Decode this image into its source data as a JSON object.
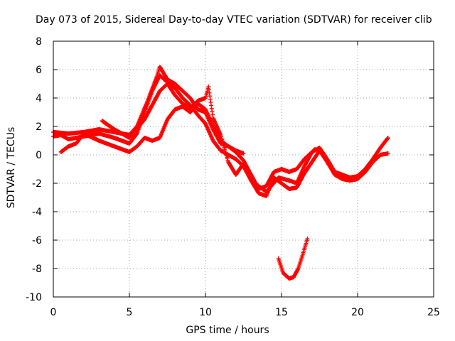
{
  "chart_data": {
    "type": "scatter",
    "title": "Day 073 of 2015, Sidereal Day-to-day VTEC variation (SDTVAR) for receiver clib",
    "xlabel": "GPS time / hours",
    "ylabel": "SDTVAR / TECUs",
    "xlim": [
      0,
      25
    ],
    "ylim": [
      -10,
      8
    ],
    "x_ticks": [
      "0",
      "5",
      "10",
      "15",
      "20",
      "25"
    ],
    "y_ticks": [
      "-10",
      "-8",
      "-6",
      "-4",
      "-2",
      "0",
      "2",
      "4",
      "6",
      "8"
    ],
    "grid": true,
    "marker_color": "#ff0000",
    "series": [
      {
        "values": [
          [
            0.0,
            1.6
          ],
          [
            1.0,
            1.5
          ],
          [
            2.0,
            1.6
          ],
          [
            3.0,
            1.8
          ],
          [
            4.0,
            1.6
          ],
          [
            5.0,
            1.4
          ],
          [
            5.5,
            2.0
          ],
          [
            6.2,
            3.8
          ],
          [
            6.8,
            5.5
          ],
          [
            7.0,
            6.2
          ],
          [
            7.5,
            5.3
          ],
          [
            8.0,
            5.0
          ],
          [
            8.5,
            4.5
          ],
          [
            9.0,
            4.0
          ],
          [
            9.5,
            3.2
          ],
          [
            10.0,
            3.0
          ],
          [
            10.5,
            1.8
          ],
          [
            11.0,
            0.8
          ],
          [
            11.5,
            0.6
          ],
          [
            12.0,
            0.2
          ],
          [
            12.5,
            -0.4
          ],
          [
            13.0,
            -1.4
          ],
          [
            13.5,
            -2.4
          ],
          [
            14.0,
            -2.2
          ],
          [
            14.5,
            -1.2
          ],
          [
            15.0,
            -1.0
          ],
          [
            15.5,
            -1.2
          ],
          [
            16.0,
            -1.0
          ],
          [
            16.5,
            -0.3
          ],
          [
            17.0,
            0.2
          ],
          [
            17.5,
            0.5
          ],
          [
            18.0,
            -0.3
          ],
          [
            18.5,
            -1.2
          ],
          [
            19.0,
            -1.4
          ],
          [
            19.5,
            -1.6
          ],
          [
            20.0,
            -1.5
          ],
          [
            20.5,
            -1.0
          ],
          [
            21.0,
            -0.3
          ],
          [
            21.5,
            0.5
          ],
          [
            22.0,
            1.2
          ]
        ]
      },
      {
        "values": [
          [
            0.0,
            1.3
          ],
          [
            0.5,
            1.4
          ],
          [
            1.0,
            1.1
          ],
          [
            2.0,
            1.3
          ],
          [
            3.0,
            1.5
          ],
          [
            4.0,
            1.2
          ],
          [
            4.5,
            1.0
          ],
          [
            5.0,
            0.8
          ],
          [
            5.5,
            1.5
          ],
          [
            6.0,
            3.0
          ],
          [
            6.5,
            4.5
          ],
          [
            7.0,
            5.6
          ],
          [
            7.5,
            5.1
          ],
          [
            8.0,
            4.7
          ],
          [
            8.5,
            4.0
          ],
          [
            9.0,
            3.5
          ],
          [
            9.5,
            2.8
          ],
          [
            10.0,
            2.2
          ],
          [
            10.5,
            1.0
          ],
          [
            11.0,
            0.3
          ],
          [
            11.5,
            0.0
          ],
          [
            12.0,
            -0.3
          ],
          [
            12.5,
            -0.8
          ],
          [
            13.0,
            -1.8
          ],
          [
            13.5,
            -2.7
          ],
          [
            14.0,
            -2.9
          ],
          [
            14.5,
            -1.6
          ],
          [
            15.0,
            -2.0
          ],
          [
            15.5,
            -2.4
          ],
          [
            16.0,
            -2.3
          ],
          [
            16.5,
            -1.3
          ],
          [
            17.0,
            -0.5
          ],
          [
            17.5,
            0.3
          ],
          [
            18.0,
            -0.5
          ],
          [
            18.5,
            -1.4
          ],
          [
            19.0,
            -1.7
          ],
          [
            19.5,
            -1.8
          ],
          [
            20.0,
            -1.7
          ],
          [
            20.5,
            -1.2
          ],
          [
            21.0,
            -0.5
          ],
          [
            21.5,
            0.0
          ],
          [
            22.0,
            0.1
          ]
        ]
      },
      {
        "values": [
          [
            0.5,
            0.2
          ],
          [
            1.0,
            0.6
          ],
          [
            1.5,
            0.8
          ],
          [
            2.0,
            1.5
          ],
          [
            3.0,
            1.0
          ],
          [
            3.5,
            0.8
          ],
          [
            4.0,
            0.6
          ],
          [
            4.5,
            0.4
          ],
          [
            5.0,
            0.2
          ],
          [
            5.5,
            0.6
          ],
          [
            6.0,
            1.2
          ],
          [
            6.5,
            1.0
          ],
          [
            7.0,
            1.2
          ],
          [
            7.5,
            2.5
          ],
          [
            8.0,
            3.2
          ],
          [
            8.5,
            3.4
          ],
          [
            9.0,
            3.0
          ],
          [
            9.5,
            3.6
          ],
          [
            10.0,
            3.2
          ],
          [
            10.5,
            2.0
          ],
          [
            11.0,
            1.0
          ],
          [
            11.5,
            0.6
          ],
          [
            12.0,
            0.3
          ],
          [
            12.5,
            0.1
          ]
        ]
      },
      {
        "values": [
          [
            3.2,
            2.4
          ],
          [
            4.0,
            1.8
          ],
          [
            5.0,
            1.2
          ],
          [
            6.0,
            2.5
          ],
          [
            7.0,
            4.5
          ],
          [
            7.5,
            5.0
          ],
          [
            8.0,
            4.2
          ],
          [
            8.5,
            3.6
          ],
          [
            9.0,
            3.3
          ],
          [
            9.5,
            3.8
          ],
          [
            10.0,
            4.0
          ],
          [
            10.2,
            4.8
          ],
          [
            10.5,
            2.6
          ],
          [
            11.0,
            1.4
          ],
          [
            11.5,
            -0.5
          ],
          [
            12.0,
            -1.4
          ],
          [
            12.5,
            -0.6
          ],
          [
            13.0,
            -1.8
          ],
          [
            14.0,
            -2.6
          ],
          [
            14.8,
            -1.6
          ],
          [
            15.5,
            -1.8
          ],
          [
            16.0,
            -2.0
          ],
          [
            16.5,
            -0.8
          ],
          [
            17.0,
            0.2
          ],
          [
            17.2,
            0.4
          ]
        ]
      },
      {
        "values": [
          [
            14.8,
            -7.3
          ],
          [
            15.1,
            -8.3
          ],
          [
            15.5,
            -8.7
          ],
          [
            15.8,
            -8.6
          ],
          [
            16.1,
            -8.0
          ],
          [
            16.4,
            -7.0
          ],
          [
            16.7,
            -5.9
          ]
        ]
      }
    ]
  }
}
